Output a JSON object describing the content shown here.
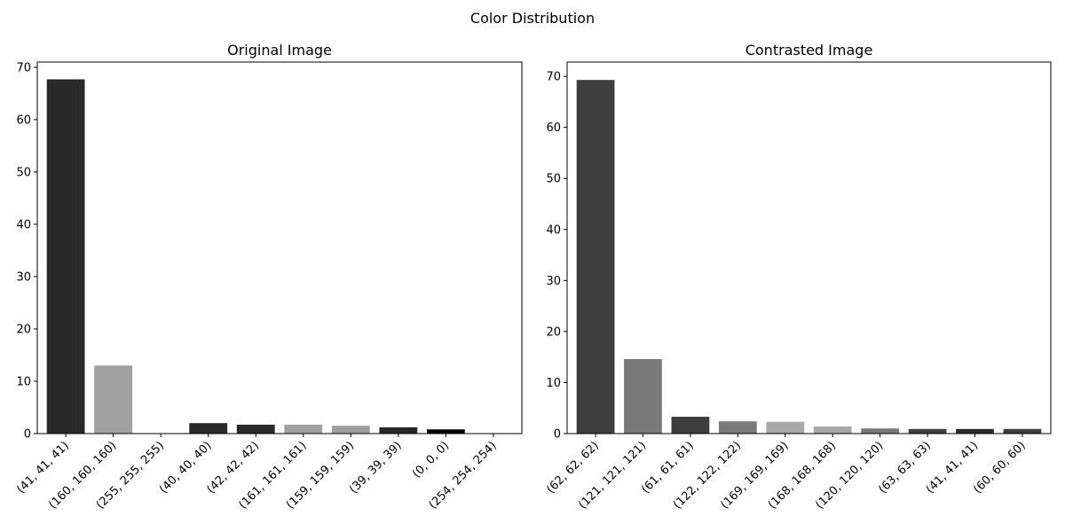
{
  "figure": {
    "suptitle": "Color Distribution"
  },
  "chart_data": [
    {
      "type": "bar",
      "title": "Original Image",
      "xlabel": "",
      "ylabel": "",
      "ylim": [
        0,
        71
      ],
      "yticks": [
        0,
        10,
        20,
        30,
        40,
        50,
        60,
        70
      ],
      "grid": false,
      "categories": [
        "(41, 41, 41)",
        "(160, 160, 160)",
        "(255, 255, 255)",
        "(40, 40, 40)",
        "(42, 42, 42)",
        "(161, 161, 161)",
        "(159, 159, 159)",
        "(39, 39, 39)",
        "(0, 0, 0)",
        "(254, 254, 254)"
      ],
      "values": [
        67.7,
        13.0,
        0.0,
        2.0,
        1.7,
        1.7,
        1.5,
        1.2,
        0.8,
        0.0
      ],
      "colors": [
        "#292929",
        "#a0a0a0",
        "#ffffff",
        "#282828",
        "#2a2a2a",
        "#a1a1a1",
        "#9f9f9f",
        "#272727",
        "#000000",
        "#fefefe"
      ]
    },
    {
      "type": "bar",
      "title": "Contrasted Image",
      "xlabel": "",
      "ylabel": "",
      "ylim": [
        0,
        72.8
      ],
      "yticks": [
        0,
        10,
        20,
        30,
        40,
        50,
        60,
        70
      ],
      "grid": false,
      "categories": [
        "(62, 62, 62)",
        "(121, 121, 121)",
        "(61, 61, 61)",
        "(122, 122, 122)",
        "(169, 169, 169)",
        "(168, 168, 168)",
        "(120, 120, 120)",
        "(63, 63, 63)",
        "(41, 41, 41)",
        "(60, 60, 60)"
      ],
      "values": [
        69.3,
        14.6,
        3.3,
        2.4,
        2.3,
        1.4,
        1.0,
        0.9,
        0.9,
        0.9
      ],
      "colors": [
        "#3e3e3e",
        "#797979",
        "#3d3d3d",
        "#7a7a7a",
        "#a9a9a9",
        "#a8a8a8",
        "#787878",
        "#3f3f3f",
        "#292929",
        "#3c3c3c"
      ]
    }
  ]
}
